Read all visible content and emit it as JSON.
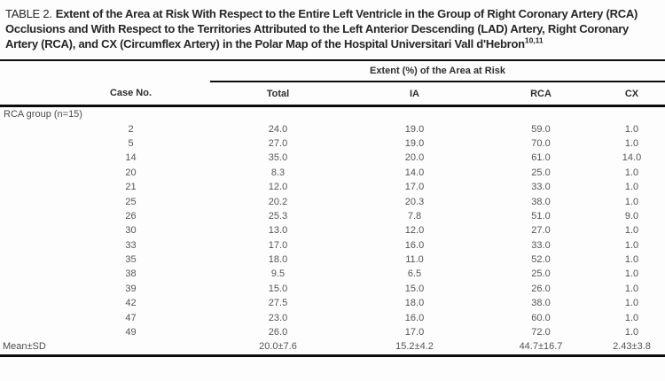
{
  "title": {
    "label": "TABLE 2.",
    "text": "Extent of the Area at Risk With Respect to the Entire Left Ventricle in the Group of Right Coronary Artery (RCA) Occlusions and With Respect to the Territories Attributed to the Left Anterior Descending (LAD) Artery, Right Coronary Artery (RCA), and CX (Circumflex Artery) in the Polar Map of the Hospital Universitari Vall d'Hebron",
    "reference_superscript": "10,11"
  },
  "table": {
    "spanner_header": "Extent (%) of the Area at Risk",
    "columns": {
      "case": "Case No.",
      "total": "Total",
      "ia": "IA",
      "rca": "RCA",
      "cx": "CX"
    },
    "group_label": "RCA group (n=15)",
    "rows": [
      {
        "case": "2",
        "total": "24.0",
        "ia": "19.0",
        "rca": "59.0",
        "cx": "1.0"
      },
      {
        "case": "5",
        "total": "27.0",
        "ia": "19.0",
        "rca": "70.0",
        "cx": "1.0"
      },
      {
        "case": "14",
        "total": "35.0",
        "ia": "20.0",
        "rca": "61.0",
        "cx": "14.0"
      },
      {
        "case": "20",
        "total": "8.3",
        "ia": "14.0",
        "rca": "25.0",
        "cx": "1.0"
      },
      {
        "case": "21",
        "total": "12.0",
        "ia": "17.0",
        "rca": "33.0",
        "cx": "1.0"
      },
      {
        "case": "25",
        "total": "20.2",
        "ia": "20.3",
        "rca": "38.0",
        "cx": "1.0"
      },
      {
        "case": "26",
        "total": "25.3",
        "ia": "7.8",
        "rca": "51.0",
        "cx": "9.0"
      },
      {
        "case": "30",
        "total": "13.0",
        "ia": "12.0",
        "rca": "27.0",
        "cx": "1.0"
      },
      {
        "case": "33",
        "total": "17.0",
        "ia": "16.0",
        "rca": "33.0",
        "cx": "1.0"
      },
      {
        "case": "35",
        "total": "18.0",
        "ia": "11.0",
        "rca": "52.0",
        "cx": "1.0"
      },
      {
        "case": "38",
        "total": "9.5",
        "ia": "6.5",
        "rca": "25.0",
        "cx": "1.0"
      },
      {
        "case": "39",
        "total": "15.0",
        "ia": "15.0",
        "rca": "26.0",
        "cx": "1.0"
      },
      {
        "case": "42",
        "total": "27.5",
        "ia": "18.0",
        "rca": "38.0",
        "cx": "1.0"
      },
      {
        "case": "47",
        "total": "23.0",
        "ia": "16.0",
        "rca": "60.0",
        "cx": "1.0"
      },
      {
        "case": "49",
        "total": "26.0",
        "ia": "17.0",
        "rca": "72.0",
        "cx": "1.0"
      }
    ],
    "summary": {
      "label": "Mean±SD",
      "total": "20.0±7.6",
      "ia": "15.2±4.2",
      "rca": "44.7±16.7",
      "cx": "2.43±3.8"
    }
  }
}
